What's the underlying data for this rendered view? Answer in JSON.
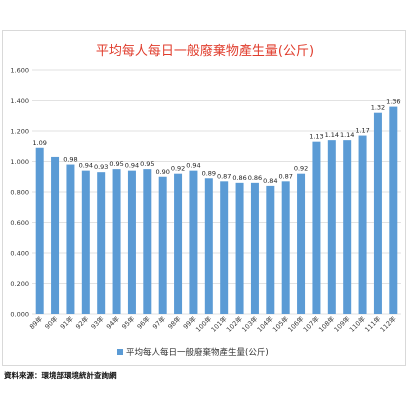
{
  "chart_data": {
    "type": "bar",
    "title": "平均每人每日一般廢棄物產生量(公斤)",
    "categories": [
      "89年",
      "90年",
      "91年",
      "92年",
      "93年",
      "94年",
      "95年",
      "96年",
      "97年",
      "98年",
      "99年",
      "100年",
      "101年",
      "102年",
      "103年",
      "104年",
      "105年",
      "106年",
      "107年",
      "108年",
      "109年",
      "110年",
      "111年",
      "112年"
    ],
    "series": [
      {
        "name": "平均每人每日一般廢棄物產生量(公斤)",
        "values": [
          1.09,
          1.03,
          0.98,
          0.94,
          0.93,
          0.95,
          0.94,
          0.95,
          0.9,
          0.92,
          0.94,
          0.89,
          0.87,
          0.86,
          0.86,
          0.84,
          0.87,
          0.92,
          1.13,
          1.14,
          1.14,
          1.17,
          1.32,
          1.36
        ]
      }
    ],
    "value_labels": [
      "1.09",
      "",
      "0.98",
      "0.94",
      "0.93",
      "0.95",
      "0.94",
      "0.95",
      "0.90",
      "0.92",
      "0.94",
      "0.89",
      "0.87",
      "0.86",
      "0.86",
      "0.84",
      "0.87",
      "0.92",
      "1.13",
      "1.14",
      "1.14",
      "1.17",
      "1.32",
      "1.36"
    ],
    "ylim": [
      0,
      1.6
    ],
    "yticks": [
      "0.000",
      "0.200",
      "0.400",
      "0.600",
      "0.800",
      "1.000",
      "1.200",
      "1.400",
      "1.600"
    ],
    "grid": true,
    "legend": "bottom",
    "bar_color": "#5b9bd5"
  },
  "source": "資料來源：環境部環境統計查詢網"
}
